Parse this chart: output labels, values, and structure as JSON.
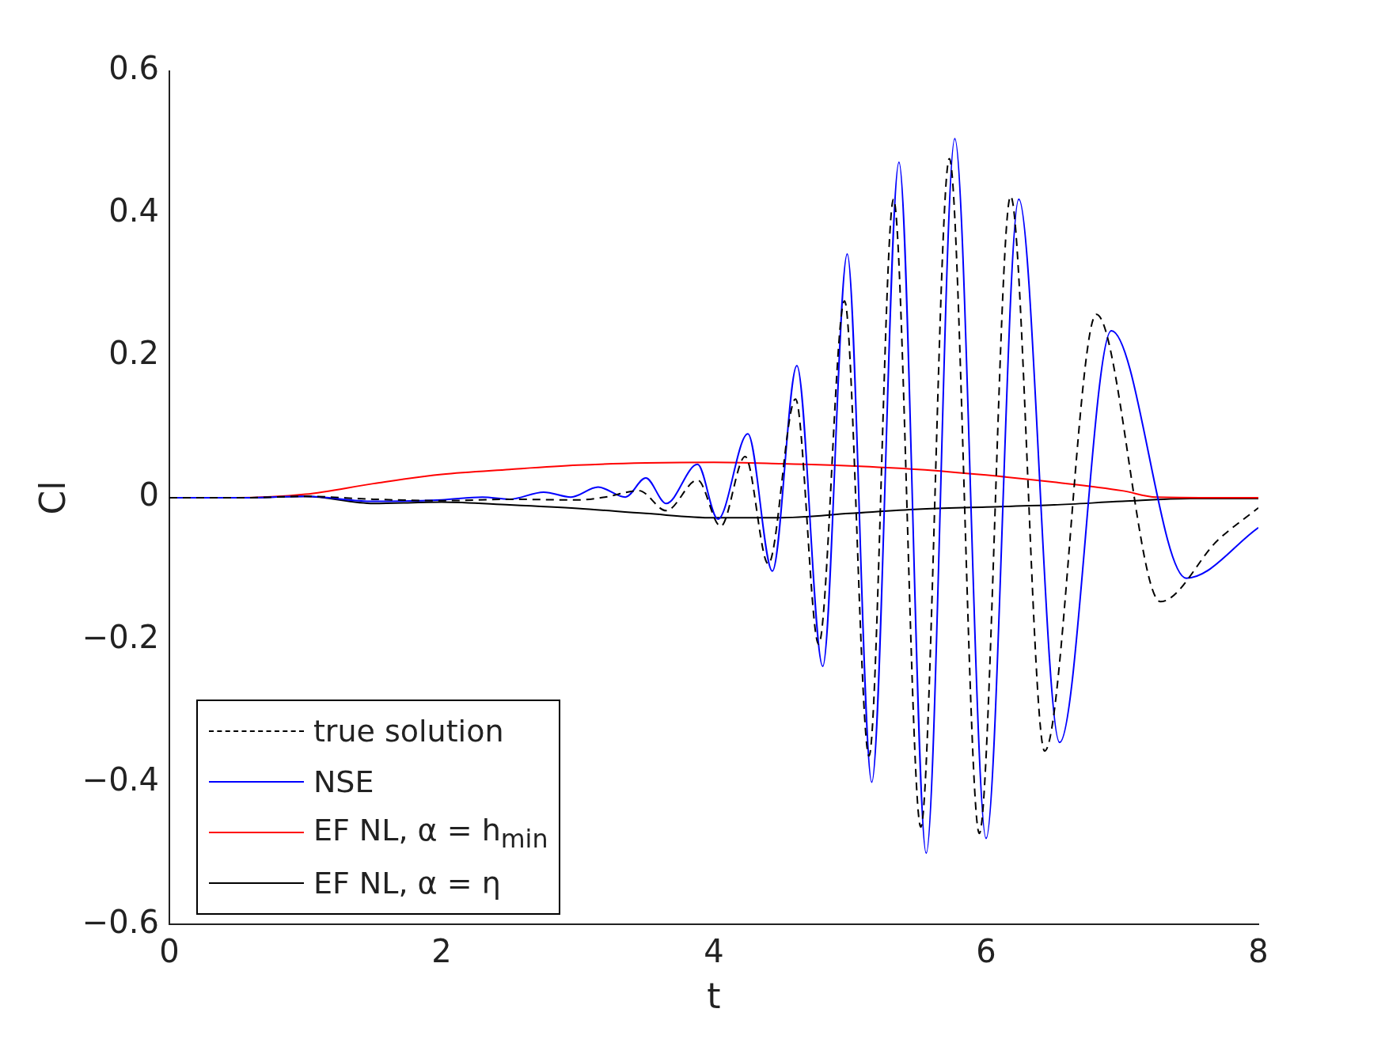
{
  "chart_data": {
    "type": "line",
    "xlabel": "t",
    "ylabel": "Cl",
    "xlim": [
      0,
      8
    ],
    "ylim": [
      -0.6,
      0.6
    ],
    "xticks": [
      0,
      2,
      4,
      6,
      8
    ],
    "yticks": [
      {
        "value": -0.6,
        "label": "−0.6"
      },
      {
        "value": -0.4,
        "label": "−0.4"
      },
      {
        "value": -0.2,
        "label": "−0.2"
      },
      0,
      0.2,
      0.4,
      0.6
    ],
    "legend": "bottom left",
    "series": [
      {
        "name": "true solution",
        "color": "#000000",
        "line_style": "dashed",
        "x": [
          0,
          0.5,
          1,
          1.5,
          2,
          2.5,
          3,
          3.2,
          3.45,
          3.65,
          3.88,
          4.05,
          4.23,
          4.4,
          4.6,
          4.77,
          4.96,
          5.14,
          5.32,
          5.52,
          5.73,
          5.95,
          6.18,
          6.43,
          6.81,
          7.28,
          7.7,
          8
        ],
        "values": [
          0,
          0,
          0.002,
          -0.002,
          -0.004,
          -0.002,
          -0.003,
          0.001,
          0.01,
          -0.018,
          0.025,
          -0.04,
          0.058,
          -0.093,
          0.139,
          -0.206,
          0.277,
          -0.363,
          0.42,
          -0.463,
          0.477,
          -0.472,
          0.424,
          -0.356,
          0.258,
          -0.146,
          -0.06,
          -0.014
        ]
      },
      {
        "name": "NSE",
        "color": "#0000ff",
        "line_style": "solid",
        "x": [
          0,
          0.5,
          1,
          1.5,
          2,
          2.3,
          2.5,
          2.75,
          2.95,
          3.15,
          3.35,
          3.5,
          3.65,
          3.88,
          4.03,
          4.25,
          4.43,
          4.61,
          4.8,
          4.98,
          5.16,
          5.36,
          5.56,
          5.77,
          6.0,
          6.24,
          6.54,
          6.92,
          7.47,
          8
        ],
        "values": [
          0,
          0,
          0.002,
          -0.005,
          -0.003,
          0.001,
          -0.002,
          0.008,
          0.001,
          0.015,
          0.001,
          0.028,
          -0.008,
          0.047,
          -0.03,
          0.09,
          -0.103,
          0.186,
          -0.237,
          0.343,
          -0.4,
          0.472,
          -0.5,
          0.505,
          -0.479,
          0.42,
          -0.344,
          0.235,
          -0.113,
          -0.042
        ]
      },
      {
        "name": "EF NL, α = h$_{min}$",
        "color": "#ff0000",
        "line_style": "solid",
        "x": [
          0,
          0.5,
          1,
          1.5,
          2,
          2.5,
          3,
          3.5,
          4,
          4.5,
          5,
          5.5,
          6,
          6.5,
          7,
          7.25,
          8
        ],
        "values": [
          0,
          0,
          0.005,
          0.02,
          0.033,
          0.04,
          0.046,
          0.049,
          0.05,
          0.048,
          0.045,
          0.04,
          0.032,
          0.022,
          0.01,
          0.001,
          0
        ]
      },
      {
        "name": "EF NL, α = η",
        "color": "#000000",
        "line_style": "solid",
        "x": [
          0,
          0.5,
          1,
          1.5,
          2,
          2.5,
          3,
          3.5,
          4,
          4.5,
          5,
          5.5,
          6,
          6.5,
          7,
          7.5,
          8
        ],
        "values": [
          0,
          0,
          0.002,
          -0.008,
          -0.006,
          -0.01,
          -0.015,
          -0.022,
          -0.028,
          -0.028,
          -0.022,
          -0.016,
          -0.013,
          -0.01,
          -0.005,
          -0.001,
          -0.001
        ]
      }
    ]
  }
}
